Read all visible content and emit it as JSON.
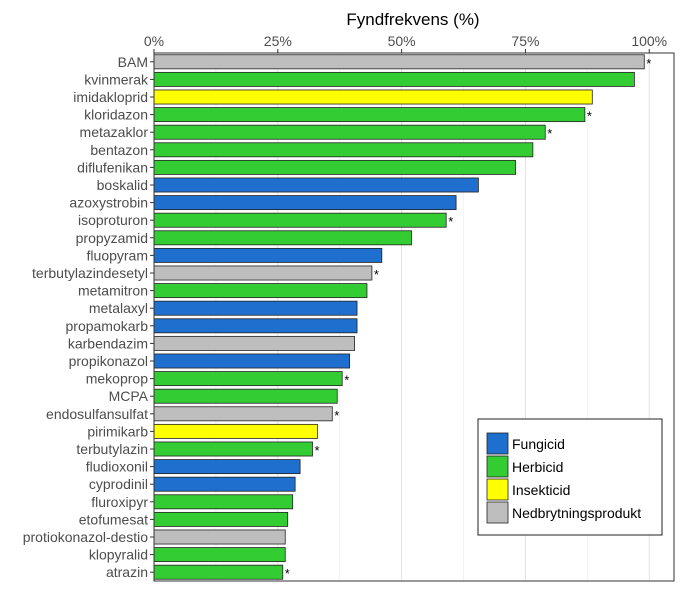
{
  "chart_data": {
    "type": "bar",
    "orientation": "horizontal",
    "title": "Fyndfrekvens (%)",
    "xlim": [
      0,
      105
    ],
    "x_ticks": [
      0,
      25,
      50,
      75,
      100
    ],
    "x_tick_labels": [
      "0%",
      "25%",
      "50%",
      "75%",
      "100%"
    ],
    "x_axis_position": "top",
    "grid": true,
    "legend_position": "bottom-right",
    "categories": [
      "BAM",
      "kvinmerak",
      "imidakloprid",
      "kloridazon",
      "metazaklor",
      "bentazon",
      "diflufenikan",
      "boskalid",
      "azoxystrobin",
      "isoproturon",
      "propyzamid",
      "fluopyram",
      "terbutylazindesetyl",
      "metamitron",
      "metalaxyl",
      "propamokarb",
      "karbendazim",
      "propikonazol",
      "mekoprop",
      "MCPA",
      "endosulfansulfat",
      "pirimikarb",
      "terbutylazin",
      "fludioxonil",
      "cyprodinil",
      "fluroxipyr",
      "etofumesat",
      "protiokonazol-destio",
      "klopyralid",
      "atrazin"
    ],
    "values": [
      99,
      97,
      88.5,
      87,
      79,
      76.5,
      73,
      65.5,
      61,
      59,
      52,
      46,
      44,
      43,
      41,
      41,
      40.5,
      39.5,
      38,
      37,
      36,
      33,
      32,
      29.5,
      28.5,
      28,
      27,
      26.5,
      26.5,
      26
    ],
    "groups": [
      "Nedbrytningsprodukt",
      "Herbicid",
      "Insekticid",
      "Herbicid",
      "Herbicid",
      "Herbicid",
      "Herbicid",
      "Fungicid",
      "Fungicid",
      "Herbicid",
      "Herbicid",
      "Fungicid",
      "Nedbrytningsprodukt",
      "Herbicid",
      "Fungicid",
      "Fungicid",
      "Nedbrytningsprodukt",
      "Fungicid",
      "Herbicid",
      "Herbicid",
      "Nedbrytningsprodukt",
      "Insekticid",
      "Herbicid",
      "Fungicid",
      "Fungicid",
      "Herbicid",
      "Herbicid",
      "Nedbrytningsprodukt",
      "Herbicid",
      "Herbicid"
    ],
    "annotations": [
      "*",
      "",
      "",
      "*",
      "*",
      "",
      "",
      "",
      "",
      "*",
      "",
      "",
      "*",
      "",
      "",
      "",
      "",
      "",
      "*",
      "",
      "*",
      "",
      "*",
      "",
      "",
      "",
      "",
      "",
      "",
      "*"
    ],
    "legend": [
      {
        "name": "Fungicid",
        "color": "#1f6fcf"
      },
      {
        "name": "Herbicid",
        "color": "#33cc33"
      },
      {
        "name": "Insekticid",
        "color": "#ffff00"
      },
      {
        "name": "Nedbrytningsprodukt",
        "color": "#bebebe"
      }
    ]
  }
}
